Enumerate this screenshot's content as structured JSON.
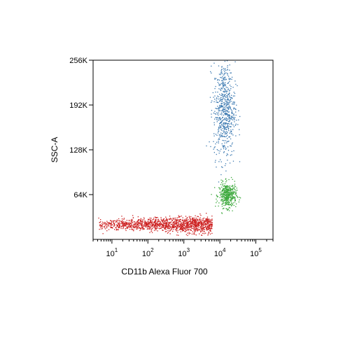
{
  "chart_data": {
    "type": "scatter",
    "xlabel": "CD11b Alexa Fluor 700",
    "ylabel": "SSC-A",
    "x_scale": "log",
    "xlim": [
      3,
      300000
    ],
    "ylim": [
      0,
      262144
    ],
    "y_ticks": [
      {
        "value": 65536,
        "label": "64K"
      },
      {
        "value": 131072,
        "label": "128K"
      },
      {
        "value": 196608,
        "label": "192K"
      },
      {
        "value": 262144,
        "label": "256K"
      }
    ],
    "x_ticks": [
      {
        "value": 10,
        "base": "10",
        "exp": "1"
      },
      {
        "value": 100,
        "base": "10",
        "exp": "2"
      },
      {
        "value": 1000,
        "base": "10",
        "exp": "3"
      },
      {
        "value": 10000,
        "base": "10",
        "exp": "4"
      },
      {
        "value": 100000,
        "base": "10",
        "exp": "5"
      }
    ],
    "grid": false,
    "legend": "none",
    "populations": [
      {
        "color": "#cc1f1f",
        "x_range": [
          4,
          6000
        ],
        "y_center": 22000,
        "y_spread": 6000,
        "count": 1400
      },
      {
        "color": "#3aa83a",
        "x_center": 16000,
        "x_spread": 0.12,
        "y_center": 65000,
        "y_spread": 9000,
        "count": 420
      },
      {
        "color": "#3a78b0",
        "x_center": 13000,
        "x_spread": 0.15,
        "y_center": 190000,
        "y_spread": 35000,
        "count": 650
      }
    ]
  }
}
